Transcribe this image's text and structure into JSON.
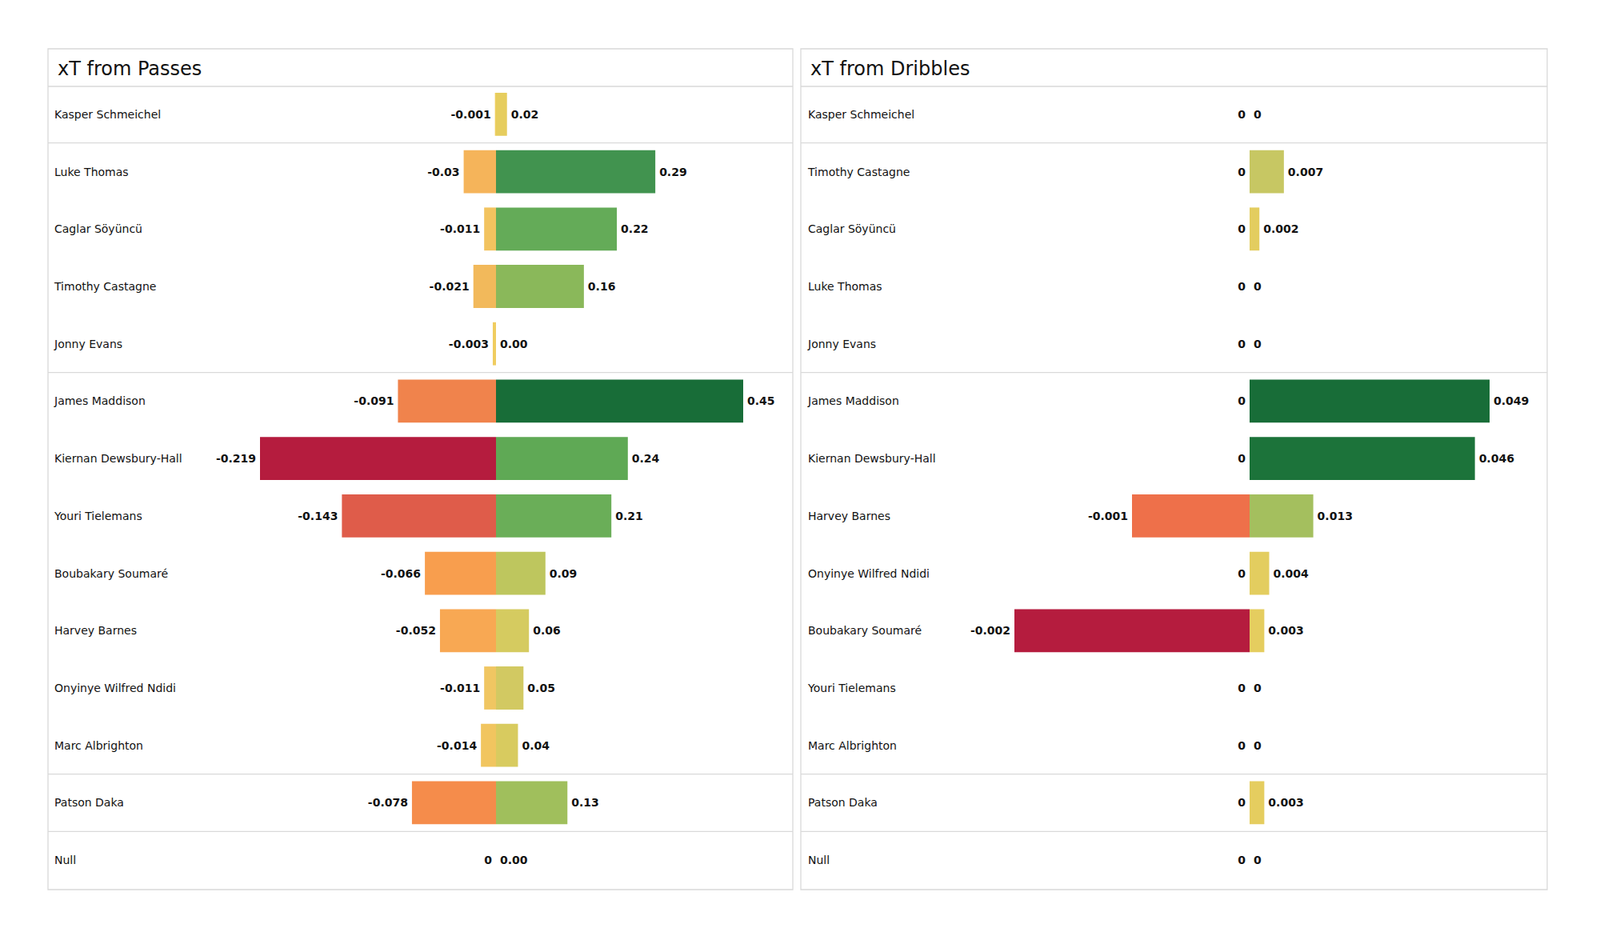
{
  "chart_data": [
    {
      "type": "bar",
      "title": "xT from Passes",
      "orientation": "horizontal",
      "data_labels": true,
      "tick_labels": "y",
      "categories": [
        "Kasper Schmeichel",
        "Luke Thomas",
        "Caglar Söyüncü",
        "Timothy Castagne",
        "Jonny Evans",
        "James Maddison",
        "Kiernan Dewsbury-Hall",
        "Youri Tielemans",
        "Boubakary Soumaré",
        "Harvey Barnes",
        "Onyinye Wilfred Ndidi",
        "Marc Albrighton",
        "Patson Daka",
        "Null"
      ],
      "series": [
        {
          "values": [
            -0.001,
            -0.03,
            -0.011,
            -0.021,
            -0.003,
            -0.091,
            -0.219,
            -0.143,
            -0.066,
            -0.052,
            -0.011,
            -0.014,
            -0.078,
            0
          ],
          "colors": [
            "#efcf5e",
            "#f5b45a",
            "#f2c35f",
            "#f2b95b",
            "#f0cd60",
            "#f0834c",
            "#b51c3e",
            "#df5c4a",
            "#f89e4e",
            "#f8a853",
            "#f0c662",
            "#f1c55f",
            "#f58c4b",
            "#efcf5e"
          ],
          "xlim": [
            -0.219,
            0
          ]
        },
        {
          "values": [
            0.02,
            0.29,
            0.22,
            0.16,
            0,
            0.45,
            0.24,
            0.21,
            0.09,
            0.06,
            0.05,
            0.04,
            0.13,
            0
          ],
          "value_labels": [
            "0.02",
            "0.29",
            "0.22",
            "0.16",
            "0.00",
            "0.45",
            "0.24",
            "0.21",
            "0.09",
            "0.06",
            "0.05",
            "0.04",
            "0.13",
            "0.00"
          ],
          "colors": [
            "#e6cd5e",
            "#41934f",
            "#64ab58",
            "#8ab85a",
            "#e6cd5e",
            "#186d38",
            "#5fa955",
            "#6aae58",
            "#bec65e",
            "#d5cb60",
            "#d2c962",
            "#d8cb5f",
            "#a0bf5c",
            "#e6cd5e"
          ],
          "xlim": [
            0,
            0.45
          ]
        }
      ]
    },
    {
      "type": "bar",
      "title": "xT from Dribbles",
      "orientation": "horizontal",
      "data_labels": true,
      "tick_labels": "y",
      "categories": [
        "Kasper Schmeichel",
        "Timothy Castagne",
        "Caglar Söyüncü",
        "Luke Thomas",
        "Jonny Evans",
        "James Maddison",
        "Kiernan Dewsbury-Hall",
        "Harvey Barnes",
        "Onyinye Wilfred Ndidi",
        "Boubakary Soumaré",
        "Youri Tielemans",
        "Marc Albrighton",
        "Patson Daka",
        "Null"
      ],
      "series": [
        {
          "values": [
            0,
            0,
            0,
            0,
            0,
            0,
            0,
            -0.001,
            0,
            -0.002,
            0,
            0,
            0,
            0
          ],
          "colors": [
            "#e6cd5e",
            "#e6cd5e",
            "#e6cd5e",
            "#e6cd5e",
            "#e6cd5e",
            "#e6cd5e",
            "#e6cd5e",
            "#ee704a",
            "#e6cd5e",
            "#b51c3e",
            "#e6cd5e",
            "#e6cd5e",
            "#e6cd5e",
            "#e6cd5e"
          ],
          "xlim": [
            -0.002,
            0
          ]
        },
        {
          "values": [
            0,
            0.007,
            0.002,
            0,
            0,
            0.049,
            0.046,
            0.013,
            0.004,
            0.003,
            0,
            0,
            0.003,
            0
          ],
          "colors": [
            "#e6cd5e",
            "#c7c763",
            "#e3cd5f",
            "#e6cd5e",
            "#e6cd5e",
            "#186d38",
            "#1c733a",
            "#a4bf5e",
            "#e3cd5f",
            "#e5cd5f",
            "#e6cd5e",
            "#e6cd5e",
            "#e5cd5f",
            "#e6cd5e"
          ],
          "xlim": [
            0,
            0.049
          ]
        }
      ]
    }
  ]
}
